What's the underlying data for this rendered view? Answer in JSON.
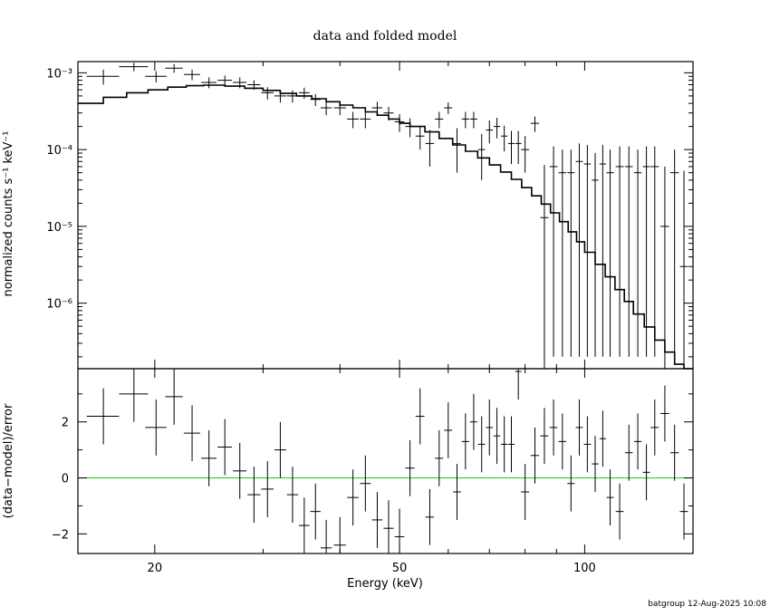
{
  "chart_data": [
    {
      "type": "scatter",
      "title": "data and folded model",
      "xlabel": "",
      "ylabel": "normalized counts s⁻¹ keV⁻¹",
      "xscale": "log",
      "yscale": "log",
      "xlim": [
        15,
        150
      ],
      "ylim": [
        1.4e-07,
        0.0014
      ],
      "ytick_labels": [
        "10⁻³",
        "10⁻⁴",
        "10⁻⁵",
        "10⁻⁶"
      ],
      "ytick_values": [
        0.001,
        0.0001,
        1e-05,
        1e-06
      ],
      "data": {
        "x": [
          16.5,
          18.5,
          20.1,
          21.5,
          23.0,
          24.5,
          26.0,
          27.5,
          29.0,
          30.5,
          32.0,
          33.5,
          35.0,
          36.5,
          38.0,
          40.0,
          42.0,
          44.0,
          46.0,
          48.0,
          50.0,
          52.0,
          54.0,
          56.0,
          58.0,
          60.0,
          62.0,
          64.0,
          66.0,
          68.0,
          70.0,
          72.0,
          74.0,
          76.0,
          78.0,
          80.0,
          83.0,
          86.0,
          89.0,
          92.0,
          95.0,
          98.0,
          101.0,
          104.0,
          107.0,
          110.0,
          114.0,
          118.0,
          122.0,
          126.0,
          130.0,
          135.0,
          140.0,
          145.0
        ],
        "xerr": [
          1.0,
          1.0,
          0.8,
          0.7,
          0.7,
          0.7,
          0.7,
          0.7,
          0.7,
          0.7,
          0.7,
          0.7,
          0.7,
          0.7,
          0.8,
          0.9,
          0.9,
          0.9,
          0.9,
          0.9,
          0.9,
          0.9,
          0.9,
          0.9,
          0.9,
          0.9,
          0.9,
          0.9,
          0.9,
          0.9,
          0.9,
          0.9,
          0.9,
          0.9,
          0.9,
          1.2,
          1.3,
          1.3,
          1.3,
          1.3,
          1.3,
          1.3,
          1.3,
          1.3,
          1.3,
          1.5,
          1.7,
          1.7,
          1.7,
          1.7,
          2.0,
          2.2,
          2.2,
          2.2
        ],
        "y": [
          0.0009,
          0.0012,
          0.0009,
          0.00115,
          0.00095,
          0.00075,
          0.0008,
          0.00075,
          0.0007,
          0.00055,
          0.0005,
          0.0005,
          0.00055,
          0.00045,
          0.00035,
          0.00035,
          0.00025,
          0.00025,
          0.00035,
          0.0003,
          0.00023,
          0.0002,
          0.00015,
          0.00012,
          0.00025,
          0.00035,
          0.00012,
          0.00025,
          0.00025,
          0.0001,
          0.00018,
          0.0002,
          0.00015,
          0.00012,
          0.00012,
          0.0001,
          0.00022,
          1.3e-05,
          6e-05,
          5e-05,
          5e-05,
          7e-05,
          6.5e-05,
          4e-05,
          6.5e-05,
          5e-05,
          6e-05,
          6e-05,
          5e-05,
          6e-05,
          6e-05,
          1e-05,
          5e-05,
          3e-06
        ],
        "yerr_lo": [
          0.0002,
          0.00015,
          0.00015,
          0.00015,
          0.00015,
          0.00012,
          0.00012,
          0.00012,
          0.0001,
          0.0001,
          9e-05,
          9e-05,
          9e-05,
          8e-05,
          7e-05,
          7e-05,
          6e-05,
          6e-05,
          7e-05,
          6e-05,
          6e-05,
          5.5e-05,
          5e-05,
          6e-05,
          6e-05,
          6e-05,
          7e-05,
          6e-05,
          6e-05,
          6e-05,
          6e-05,
          6e-05,
          5.5e-05,
          5.5e-05,
          5.5e-05,
          5e-05,
          5e-05,
          1.29e-05,
          5.98e-05,
          4.98e-05,
          4.98e-05,
          6.98e-05,
          6.48e-05,
          3.98e-05,
          6.48e-05,
          4.98e-05,
          5.98e-05,
          5.98e-05,
          4.98e-05,
          5.98e-05,
          5.98e-05,
          9.9e-06,
          4.98e-05,
          2.9e-06
        ],
        "yerr_hi": [
          0.0002,
          0.00015,
          0.00015,
          0.00015,
          0.00015,
          0.00012,
          0.00012,
          0.00012,
          0.0001,
          0.0001,
          9e-05,
          9e-05,
          9e-05,
          8e-05,
          7e-05,
          7e-05,
          6e-05,
          6e-05,
          7e-05,
          6e-05,
          6e-05,
          5.5e-05,
          5e-05,
          6e-05,
          6e-05,
          6e-05,
          7e-05,
          6e-05,
          6e-05,
          6e-05,
          6e-05,
          6e-05,
          5.5e-05,
          5.5e-05,
          5.5e-05,
          5e-05,
          5e-05,
          5e-05,
          5e-05,
          5e-05,
          5e-05,
          5e-05,
          5e-05,
          5e-05,
          5e-05,
          5e-05,
          5e-05,
          5e-05,
          5e-05,
          5e-05,
          5e-05,
          5e-05,
          5e-05,
          5e-05
        ]
      },
      "model": {
        "x": [
          15.0,
          16.5,
          18.0,
          19.5,
          21.0,
          22.5,
          24.0,
          26.0,
          28.0,
          30.0,
          32.0,
          34.0,
          36.0,
          38.0,
          40.0,
          42.0,
          44.0,
          46.0,
          48.0,
          50.0,
          52.0,
          55.0,
          58.0,
          61.0,
          64.0,
          67.0,
          70.0,
          73.0,
          76.0,
          79.0,
          82.0,
          85.0,
          88.0,
          91.0,
          94.0,
          97.0,
          100.0,
          104.0,
          108.0,
          112.0,
          116.0,
          120.0,
          125.0,
          130.0,
          135.0,
          140.0,
          145.0,
          150.0
        ],
        "y": [
          0.0004,
          0.00048,
          0.00055,
          0.0006,
          0.00065,
          0.00068,
          0.00069,
          0.00067,
          0.00063,
          0.00059,
          0.00054,
          0.0005,
          0.00046,
          0.00042,
          0.00038,
          0.00035,
          0.00031,
          0.00028,
          0.00025,
          0.00022,
          0.0002,
          0.00017,
          0.00014,
          0.000115,
          9.5e-05,
          7.8e-05,
          6.3e-05,
          5.1e-05,
          4.1e-05,
          3.2e-05,
          2.5e-05,
          1.95e-05,
          1.5e-05,
          1.15e-05,
          8.5e-06,
          6.3e-06,
          4.6e-06,
          3.2e-06,
          2.2e-06,
          1.5e-06,
          1.05e-06,
          7.2e-07,
          4.9e-07,
          3.3e-07,
          2.3e-07,
          1.6e-07,
          1.2e-07,
          1e-07
        ]
      }
    },
    {
      "type": "scatter",
      "title": "",
      "xlabel": "Energy (keV)",
      "ylabel": "(data−model)/error",
      "xscale": "log",
      "yscale": "linear",
      "xlim": [
        15,
        150
      ],
      "ylim": [
        -2.7,
        3.9
      ],
      "ytick_labels": [
        "2",
        "0",
        "−2"
      ],
      "ytick_values": [
        2,
        0,
        -2
      ],
      "xtick_labels": [
        "20",
        "50",
        "100"
      ],
      "xtick_values": [
        20,
        50,
        100
      ],
      "reference_line": {
        "y": 0,
        "color": "#33cc33"
      },
      "residuals": {
        "x": [
          16.5,
          18.5,
          20.1,
          21.5,
          23.0,
          24.5,
          26.0,
          27.5,
          29.0,
          30.5,
          32.0,
          33.5,
          35.0,
          36.5,
          38.0,
          40.0,
          42.0,
          44.0,
          46.0,
          48.0,
          50.0,
          52.0,
          54.0,
          56.0,
          58.0,
          60.0,
          62.0,
          64.0,
          66.0,
          68.0,
          70.0,
          72.0,
          74.0,
          76.0,
          78.0,
          80.0,
          83.0,
          86.0,
          89.0,
          92.0,
          95.0,
          98.0,
          101.0,
          104.0,
          107.0,
          110.0,
          114.0,
          118.0,
          122.0,
          126.0,
          130.0,
          135.0,
          140.0,
          145.0
        ],
        "xerr": [
          1.0,
          1.0,
          0.8,
          0.7,
          0.7,
          0.7,
          0.7,
          0.7,
          0.7,
          0.7,
          0.7,
          0.7,
          0.7,
          0.7,
          0.8,
          0.9,
          0.9,
          0.9,
          0.9,
          0.9,
          0.9,
          0.9,
          0.9,
          0.9,
          0.9,
          0.9,
          0.9,
          0.9,
          0.9,
          0.9,
          0.9,
          0.9,
          0.9,
          0.9,
          0.9,
          1.2,
          1.3,
          1.3,
          1.3,
          1.3,
          1.3,
          1.3,
          1.3,
          1.3,
          1.3,
          1.5,
          1.7,
          1.7,
          1.7,
          1.7,
          2.0,
          2.2,
          2.2,
          2.2
        ],
        "y": [
          2.2,
          3.0,
          1.8,
          2.9,
          1.6,
          0.7,
          1.1,
          0.25,
          -0.6,
          -0.4,
          1.0,
          -0.6,
          -1.7,
          -1.2,
          -2.5,
          -2.4,
          -0.7,
          -0.2,
          -1.5,
          -1.8,
          -2.1,
          0.35,
          2.2,
          -1.4,
          0.7,
          1.7,
          -0.5,
          1.3,
          2.0,
          1.2,
          1.8,
          1.5,
          1.2,
          1.2,
          3.8,
          -0.5,
          0.8,
          1.5,
          1.8,
          1.3,
          -0.2,
          1.8,
          1.2,
          0.5,
          1.4,
          -0.7,
          -1.2,
          0.9,
          1.3,
          0.2,
          1.8,
          2.3,
          0.9,
          -1.2
        ],
        "yerr": [
          1.0,
          1.0,
          1.0,
          1.0,
          1.0,
          1.0,
          1.0,
          1.0,
          1.0,
          1.0,
          1.0,
          1.0,
          1.0,
          1.0,
          1.0,
          1.0,
          1.0,
          1.0,
          1.0,
          1.0,
          1.0,
          1.0,
          1.0,
          1.0,
          1.0,
          1.0,
          1.0,
          1.0,
          1.0,
          1.0,
          1.0,
          1.0,
          1.0,
          1.0,
          1.0,
          1.0,
          1.0,
          1.0,
          1.0,
          1.0,
          1.0,
          1.0,
          1.0,
          1.0,
          1.0,
          1.0,
          1.0,
          1.0,
          1.0,
          1.0,
          1.0,
          1.0,
          1.0,
          1.0
        ]
      }
    }
  ],
  "footer": "batgroup 12-Aug-2025 10:08"
}
